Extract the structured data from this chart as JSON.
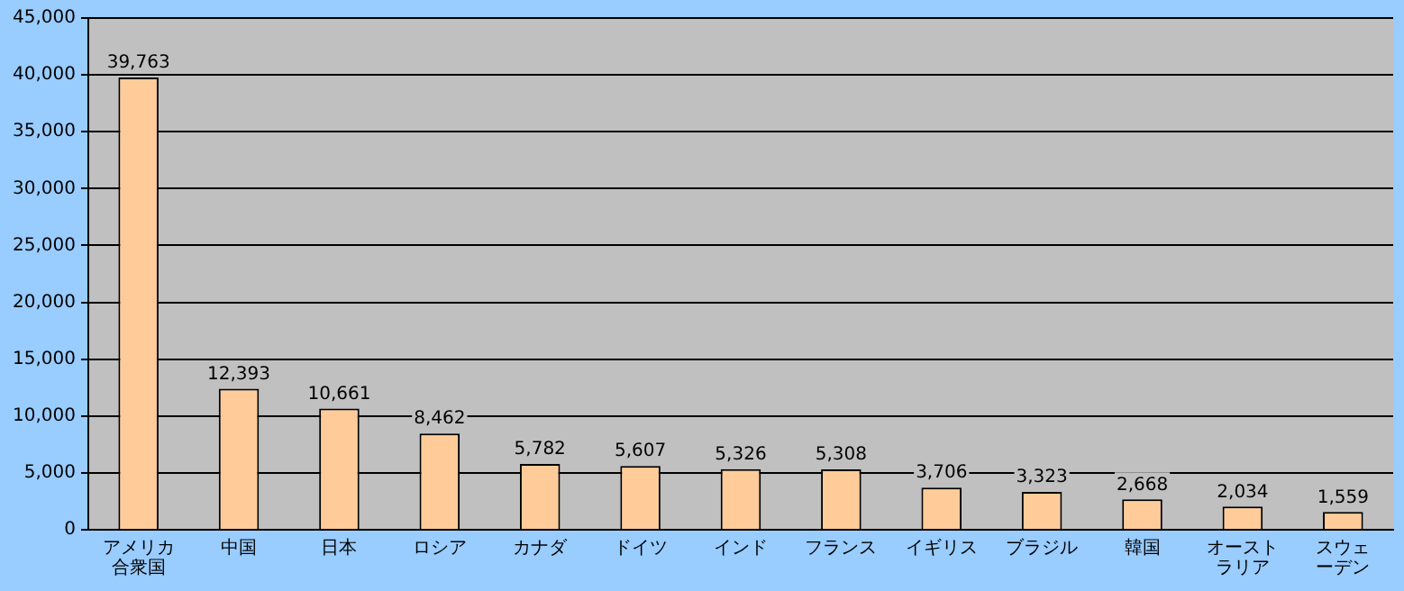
{
  "chart_data": {
    "type": "bar",
    "categories": [
      "アメリカ合衆国",
      "中国",
      "日本",
      "ロシア",
      "カナダ",
      "ドイツ",
      "インド",
      "フランス",
      "イギリス",
      "ブラジル",
      "韓国",
      "オーストラリア",
      "スウェーデン"
    ],
    "values": [
      39763,
      12393,
      10661,
      8462,
      5782,
      5607,
      5326,
      5308,
      3706,
      3323,
      2668,
      2034,
      1559
    ],
    "value_labels": [
      "39,763",
      "12,393",
      "10,661",
      "8,462",
      "5,782",
      "5,607",
      "5,326",
      "5,308",
      "3,706",
      "3,323",
      "2,668",
      "2,034",
      "1,559"
    ],
    "color": "#ffcc99",
    "ylim": [
      0,
      45000
    ],
    "yticks": [
      0,
      {
        "value": 5000,
        "label": "5,000"
      },
      {
        "value": 10000,
        "label": "10,000"
      },
      {
        "value": 15000,
        "label": "15,000"
      },
      {
        "value": 20000,
        "label": "20,000"
      },
      {
        "value": 25000,
        "label": "25,000"
      },
      {
        "value": 30000,
        "label": "30,000"
      },
      {
        "value": 35000,
        "label": "35,000"
      },
      {
        "value": 40000,
        "label": "40,000"
      },
      {
        "value": 45000,
        "label": "45,000"
      }
    ],
    "grid": "y",
    "legend": false
  }
}
